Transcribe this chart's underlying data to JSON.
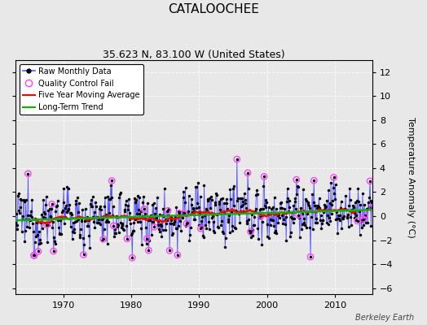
{
  "title": "CATALOOCHEE",
  "subtitle": "35.623 N, 83.100 W (United States)",
  "ylabel": "Temperature Anomaly (°C)",
  "credit": "Berkeley Earth",
  "xlim": [
    1963,
    2015.5
  ],
  "ylim": [
    -6.5,
    13
  ],
  "yticks": [
    -6,
    -4,
    -2,
    0,
    2,
    4,
    6,
    8,
    10,
    12
  ],
  "xticks": [
    1970,
    1980,
    1990,
    2000,
    2010
  ],
  "background_color": "#e8e8e8",
  "grid_color": "#d0d0d0",
  "raw_line_color": "#5555ff",
  "raw_dot_color": "#000000",
  "qc_fail_color": "#ff44ff",
  "moving_avg_color": "#ff0000",
  "trend_color": "#00bb00",
  "title_fontsize": 11,
  "subtitle_fontsize": 9,
  "label_fontsize": 8,
  "tick_fontsize": 8,
  "seed": 12345
}
